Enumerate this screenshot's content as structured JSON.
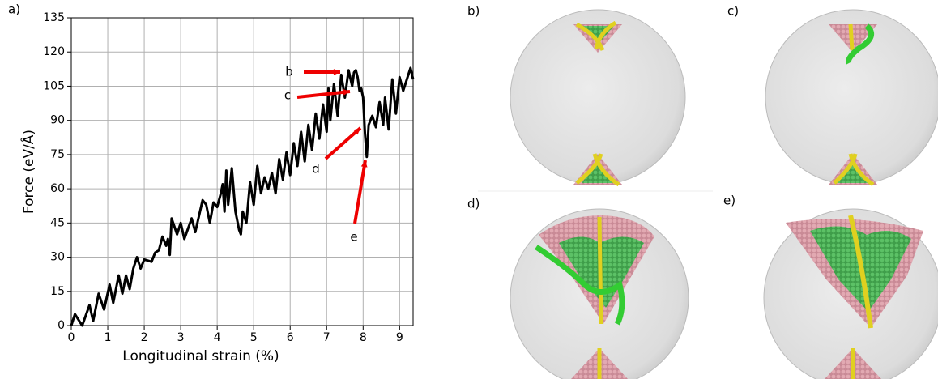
{
  "chart_data": {
    "type": "line",
    "panel_label": "a)",
    "x_label": "Longitudinal strain (%)",
    "y_label": "Force (eV/Å)",
    "x": [
      0,
      0.1,
      0.3,
      0.5,
      0.6,
      0.75,
      0.9,
      1.05,
      1.15,
      1.3,
      1.4,
      1.5,
      1.6,
      1.7,
      1.8,
      1.9,
      2.0,
      2.2,
      2.3,
      2.4,
      2.5,
      2.6,
      2.65,
      2.7,
      2.75,
      2.9,
      3.0,
      3.1,
      3.3,
      3.4,
      3.5,
      3.6,
      3.7,
      3.8,
      3.9,
      4.0,
      4.1,
      4.15,
      4.2,
      4.25,
      4.3,
      4.4,
      4.5,
      4.6,
      4.65,
      4.7,
      4.8,
      4.9,
      5.0,
      5.1,
      5.2,
      5.3,
      5.4,
      5.5,
      5.6,
      5.7,
      5.8,
      5.9,
      6.0,
      6.1,
      6.2,
      6.3,
      6.4,
      6.5,
      6.6,
      6.7,
      6.8,
      6.9,
      7.0,
      7.05,
      7.1,
      7.2,
      7.3,
      7.4,
      7.5,
      7.6,
      7.7,
      7.75,
      7.8,
      7.85,
      7.9,
      7.95,
      8.0,
      8.05,
      8.1,
      8.15,
      8.25,
      8.35,
      8.45,
      8.55,
      8.6,
      8.7,
      8.8,
      8.9,
      9.0,
      9.1,
      9.2,
      9.3,
      9.37
    ],
    "values": [
      0,
      5,
      0,
      9,
      2,
      14,
      7,
      18,
      10,
      22,
      14,
      22,
      16,
      25,
      30,
      25,
      29,
      28,
      32,
      33,
      39,
      35,
      38,
      31,
      47,
      40,
      45,
      38,
      47,
      41,
      48,
      55,
      53,
      45,
      54,
      52,
      58,
      62,
      50,
      68,
      53,
      69,
      50,
      42,
      40,
      50,
      45,
      63,
      53,
      70,
      58,
      65,
      60,
      67,
      58,
      73,
      64,
      76,
      66,
      80,
      70,
      85,
      72,
      88,
      77,
      93,
      82,
      97,
      85,
      104,
      90,
      106,
      92,
      110,
      100,
      112,
      105,
      111,
      112,
      109,
      103,
      104,
      100,
      84,
      74,
      88,
      92,
      87,
      98,
      88,
      100,
      86,
      108,
      93,
      109,
      103,
      108,
      113,
      108
    ],
    "color": "#000000",
    "xlim": [
      0,
      9.37
    ],
    "ylim": [
      0,
      135
    ],
    "xticks": [
      0,
      1,
      2,
      3,
      4,
      5,
      6,
      7,
      8,
      9
    ],
    "yticks": [
      0,
      15,
      30,
      45,
      60,
      75,
      90,
      105,
      120,
      135
    ],
    "grid": true,
    "annotations": [
      "b",
      "c",
      "d",
      "e"
    ],
    "annotation_color": "#ee0000"
  },
  "panels": [
    "b)",
    "c)",
    "d)",
    "e)"
  ]
}
